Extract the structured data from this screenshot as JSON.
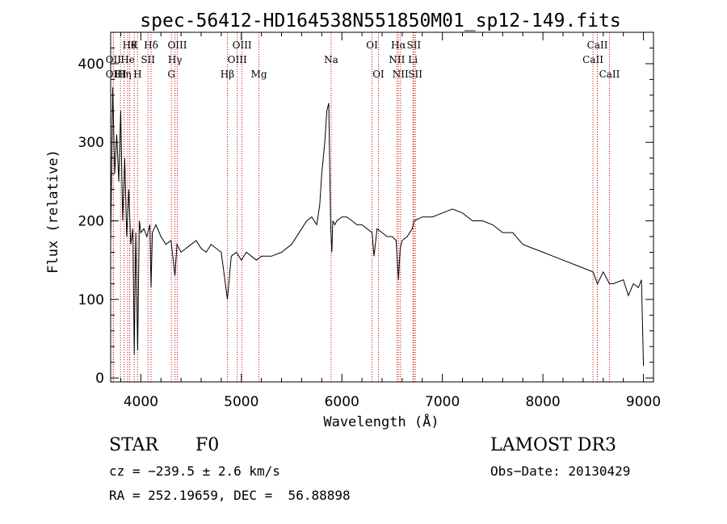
{
  "chart_data": {
    "type": "line",
    "title": "spec-56412-HD164538N551850M01_sp12-149.fits",
    "xlabel": "Wavelength (Å)",
    "ylabel": "Flux (relative)",
    "xlim": [
      3700,
      9100
    ],
    "ylim": [
      -5,
      440
    ],
    "xticks": [
      4000,
      5000,
      6000,
      7000,
      8000,
      9000
    ],
    "yticks": [
      0,
      100,
      200,
      300,
      400
    ],
    "grid": false,
    "series": [
      {
        "x": [
          3700,
          3720,
          3740,
          3760,
          3780,
          3800,
          3820,
          3840,
          3860,
          3880,
          3900,
          3920,
          3935,
          3950,
          3968,
          3985,
          4000,
          4030,
          4060,
          4090,
          4102,
          4115,
          4150,
          4200,
          4250,
          4300,
          4340,
          4360,
          4400,
          4450,
          4500,
          4550,
          4600,
          4650,
          4700,
          4750,
          4800,
          4861,
          4900,
          4950,
          5000,
          5050,
          5100,
          5150,
          5200,
          5300,
          5400,
          5500,
          5600,
          5650,
          5700,
          5750,
          5780,
          5800,
          5830,
          5850,
          5870,
          5880,
          5890,
          5900,
          5910,
          5930,
          5950,
          6000,
          6050,
          6100,
          6150,
          6200,
          6250,
          6300,
          6320,
          6350,
          6400,
          6450,
          6500,
          6540,
          6563,
          6580,
          6600,
          6650,
          6700,
          6720,
          6800,
          6900,
          7000,
          7100,
          7200,
          7300,
          7400,
          7500,
          7600,
          7700,
          7800,
          7900,
          8000,
          8100,
          8200,
          8300,
          8400,
          8498,
          8542,
          8600,
          8662,
          8700,
          8800,
          8850,
          8900,
          8950,
          8980,
          9000
        ],
        "y": [
          170,
          370,
          260,
          310,
          250,
          340,
          200,
          280,
          180,
          240,
          170,
          190,
          30,
          185,
          35,
          200,
          185,
          190,
          180,
          195,
          115,
          185,
          195,
          180,
          170,
          175,
          130,
          170,
          160,
          165,
          170,
          175,
          165,
          160,
          170,
          165,
          160,
          100,
          155,
          160,
          150,
          160,
          155,
          150,
          155,
          155,
          160,
          170,
          190,
          200,
          205,
          195,
          220,
          260,
          300,
          340,
          350,
          260,
          190,
          160,
          200,
          195,
          200,
          205,
          205,
          200,
          195,
          195,
          190,
          185,
          155,
          190,
          185,
          180,
          180,
          175,
          125,
          165,
          175,
          180,
          190,
          200,
          205,
          205,
          210,
          215,
          210,
          200,
          200,
          195,
          185,
          185,
          170,
          165,
          160,
          155,
          150,
          145,
          140,
          135,
          120,
          135,
          120,
          120,
          125,
          105,
          120,
          115,
          125,
          15
        ]
      }
    ],
    "lines": [
      {
        "x": 3727,
        "label": "OII",
        "row": 2
      },
      {
        "x": 3727,
        "label": "OII",
        "row": 3
      },
      {
        "x": 3798,
        "label": "HI",
        "row": 3
      },
      {
        "x": 3835,
        "label": "Hη",
        "row": 3
      },
      {
        "x": 3869,
        "label": "He",
        "row": 2
      },
      {
        "x": 3889,
        "label": "Hθ",
        "row": 1
      },
      {
        "x": 3934,
        "label": "K",
        "row": 1
      },
      {
        "x": 3968,
        "label": "H",
        "row": 3
      },
      {
        "x": 4071,
        "label": "SII",
        "row": 2
      },
      {
        "x": 4102,
        "label": "Hδ",
        "row": 1
      },
      {
        "x": 4304,
        "label": "G",
        "row": 3
      },
      {
        "x": 4340,
        "label": "Hγ",
        "row": 2
      },
      {
        "x": 4363,
        "label": "OIII",
        "row": 1
      },
      {
        "x": 4861,
        "label": "Hβ",
        "row": 3
      },
      {
        "x": 4959,
        "label": "OIII",
        "row": 2
      },
      {
        "x": 5007,
        "label": "OIII",
        "row": 1
      },
      {
        "x": 5175,
        "label": "Mg",
        "row": 3
      },
      {
        "x": 5893,
        "label": "Na",
        "row": 2
      },
      {
        "x": 6300,
        "label": "OI",
        "row": 1
      },
      {
        "x": 6364,
        "label": "OI",
        "row": 3
      },
      {
        "x": 6548,
        "label": "NII",
        "row": 2
      },
      {
        "x": 6563,
        "label": "Hα",
        "row": 1
      },
      {
        "x": 6583,
        "label": "NII",
        "row": 3
      },
      {
        "x": 6707,
        "label": "Li",
        "row": 2
      },
      {
        "x": 6716,
        "label": "SII",
        "row": 1
      },
      {
        "x": 6731,
        "label": "SII",
        "row": 3
      },
      {
        "x": 8498,
        "label": "CaII",
        "row": 2
      },
      {
        "x": 8542,
        "label": "CaII",
        "row": 1
      },
      {
        "x": 8662,
        "label": "CaII",
        "row": 3
      }
    ],
    "line_marker_color": "#cc0000",
    "spectrum_color": "#000000"
  },
  "info": {
    "object": "STAR",
    "subclass": "F0",
    "survey": "LAMOST DR3",
    "cz": "cz = −239.5 ± 2.6 km/s",
    "obs_date": "Obs−Date: 20130429",
    "coords": "RA = 252.19659, DEC =  56.88898"
  }
}
